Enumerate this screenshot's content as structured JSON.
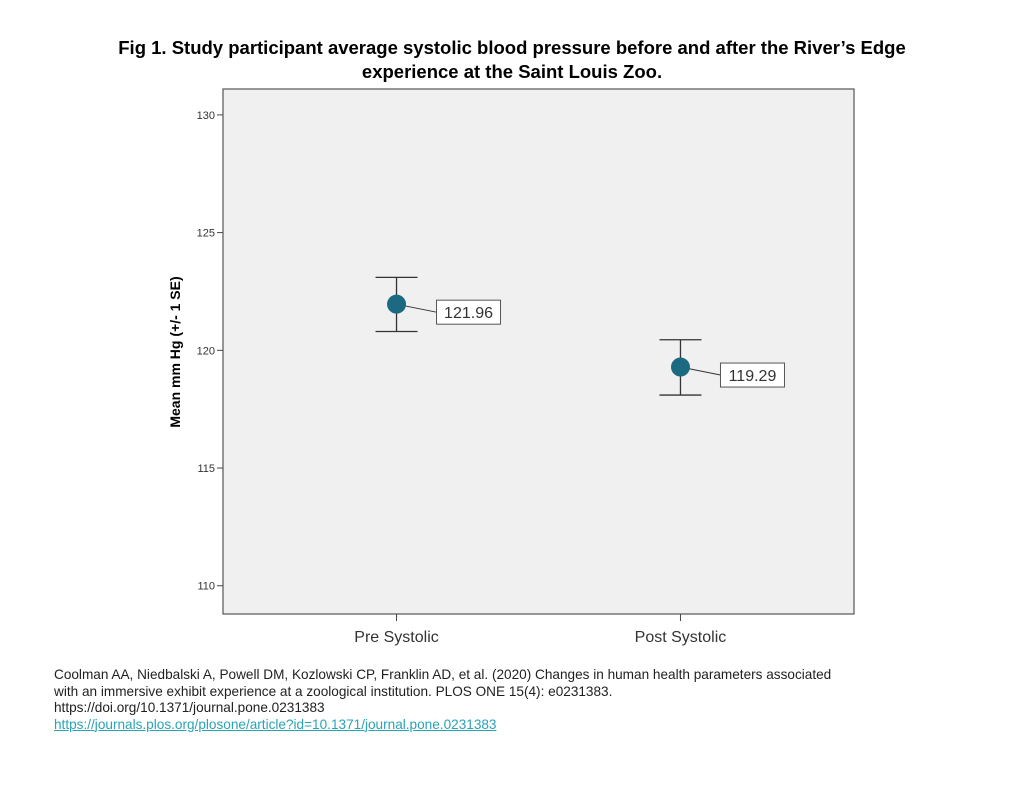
{
  "title": {
    "line1": "Fig 1. Study participant average systolic blood pressure before and after the River’s Edge",
    "line2": "experience at the Saint Louis Zoo."
  },
  "colors": {
    "plot_background": "#f0f0f0",
    "marker": "#1c6a82",
    "link": "#2aa3b7"
  },
  "chart_data": {
    "type": "scatter",
    "title": "Fig 1. Study participant average systolic blood pressure before and after the River’s Edge experience at the Saint Louis Zoo.",
    "xlabel": "",
    "ylabel": "Mean mm Hg (+/- 1 SE)",
    "categories": [
      "Pre Systolic",
      "Post Systolic"
    ],
    "values": [
      121.96,
      119.29
    ],
    "error_bars": {
      "upper": [
        123.1,
        120.45
      ],
      "lower": [
        120.8,
        118.1
      ]
    },
    "data_labels": [
      "121.96",
      "119.29"
    ],
    "ylim": [
      108.8,
      131.1
    ],
    "yticks": [
      110,
      115,
      120,
      125,
      130
    ],
    "ytick_labels": [
      "110",
      "115",
      "120",
      "125",
      "130"
    ],
    "grid": false,
    "legend": "none"
  },
  "citation": {
    "line1": "Coolman AA, Niedbalski A, Powell DM, Kozlowski CP, Franklin AD, et al. (2020) Changes in human health parameters associated",
    "line2": "with an immersive exhibit experience at a zoological institution.  PLOS ONE 15(4): e0231383.",
    "line3": "https://doi.org/10.1371/journal.pone.0231383",
    "link": "https://journals.plos.org/plosone/article?id=10.1371/journal.pone.0231383"
  }
}
